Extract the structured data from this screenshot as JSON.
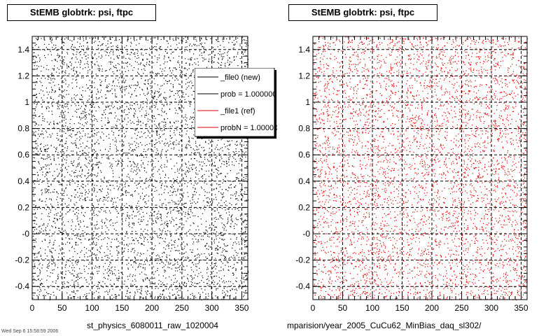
{
  "panels": [
    {
      "title": "StEMB globtrk: psi, ftpc",
      "footer": "st_physics_6080011_raw_1020004",
      "point_color": "#000000"
    },
    {
      "title": "StEMB globtrk: psi, ftpc",
      "footer": "mparision/year_2005_CuCu62_MinBias_daq_sl302/",
      "point_color": "#dd0000"
    }
  ],
  "footer_stamp": "Wed Sep 6 15:58:59 2006",
  "legend": {
    "entries": [
      {
        "label": "_file0 (new)",
        "color": "#000000"
      },
      {
        "label": "prob = 1.000000",
        "color": "#000000"
      },
      {
        "label": "_file1 (ref)",
        "color": "#dd0000"
      },
      {
        "label": "probN = 1.000000",
        "color": "#dd0000"
      }
    ]
  },
  "chart_data": [
    {
      "type": "scatter",
      "title": "StEMB globtrk: psi, ftpc",
      "xlabel": "",
      "ylabel": "",
      "xlim": [
        0,
        360
      ],
      "ylim": [
        -0.5,
        1.5
      ],
      "x_ticks": [
        "0",
        "50",
        "100",
        "150",
        "200",
        "250",
        "300",
        "350"
      ],
      "y_ticks": [
        "-0.4",
        "-0.2",
        "-0",
        "0.2",
        "0.4",
        "0.6",
        "0.8",
        "1",
        "1.2",
        "1.4"
      ],
      "grid": true,
      "series": [
        {
          "name": "_file0 (new)",
          "color": "#000000",
          "distribution": "approximately uniform over x 0–360, y -0.5–1.5"
        }
      ]
    },
    {
      "type": "scatter",
      "title": "StEMB globtrk: psi, ftpc",
      "xlabel": "",
      "ylabel": "",
      "xlim": [
        0,
        360
      ],
      "ylim": [
        -0.5,
        1.5
      ],
      "x_ticks": [
        "0",
        "50",
        "100",
        "150",
        "200",
        "250",
        "300",
        "350"
      ],
      "y_ticks": [
        "-0.4",
        "-0.2",
        "-0",
        "0.2",
        "0.4",
        "0.6",
        "0.8",
        "1",
        "1.2",
        "1.4"
      ],
      "grid": true,
      "series": [
        {
          "name": "_file1 (ref)",
          "color": "#dd0000",
          "distribution": "approximately uniform over x 0–360, y -0.5–1.5"
        }
      ]
    }
  ]
}
